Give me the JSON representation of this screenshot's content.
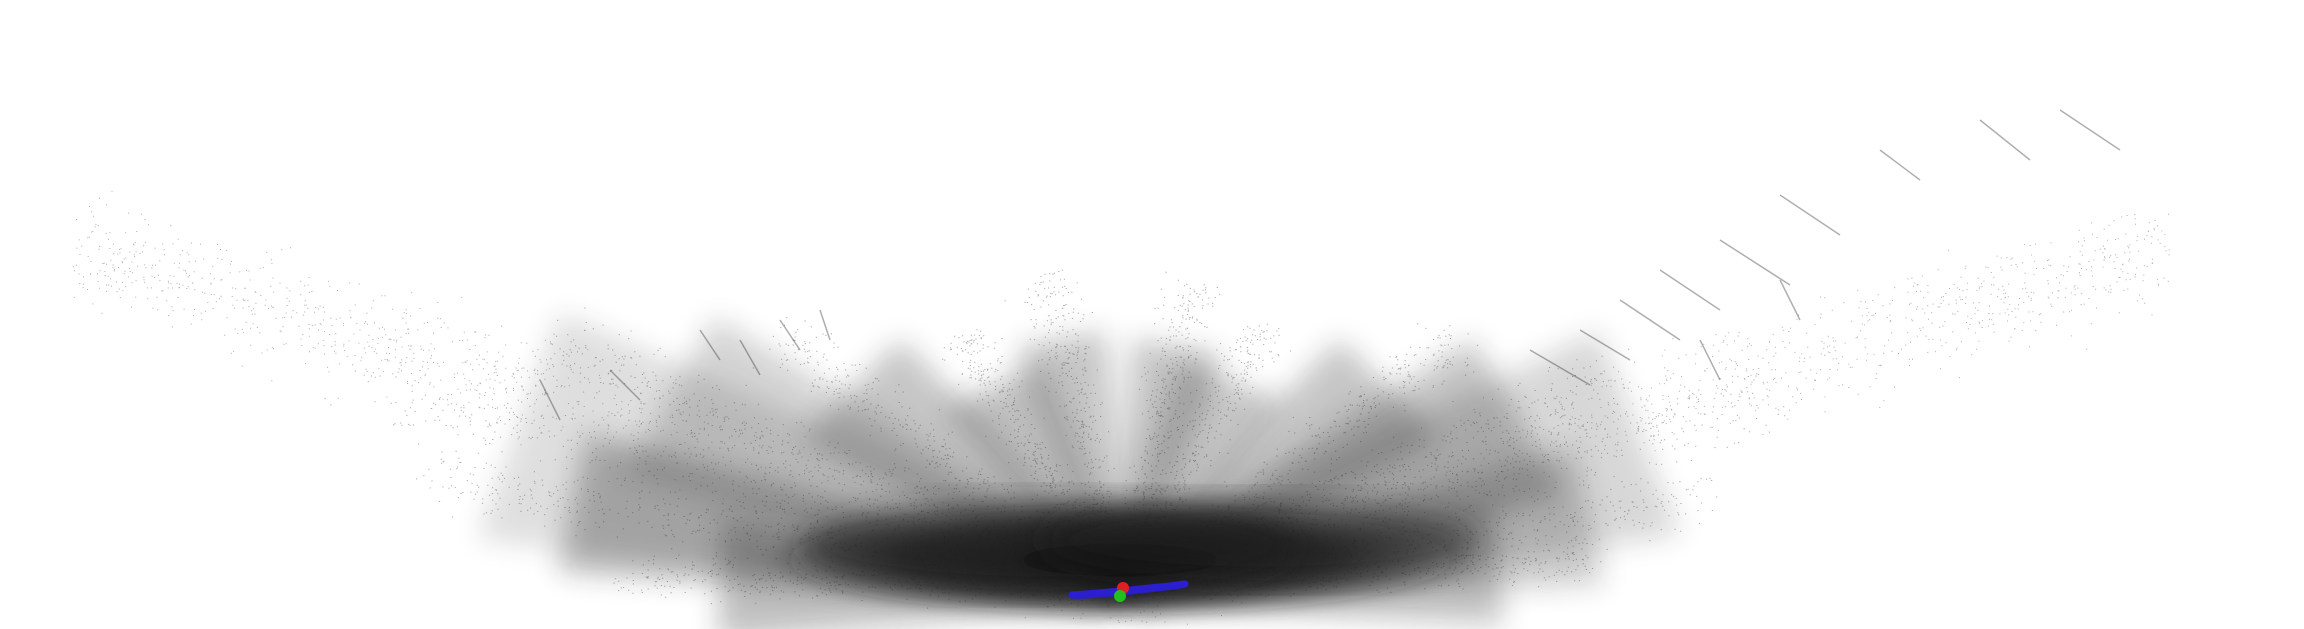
{
  "scene": {
    "type": "point-cloud-render",
    "background_color": "#ffffff",
    "point_color": "#1a1a1a",
    "trajectory_color": "#2b1fd0",
    "marker_colors": {
      "start": "#e02020",
      "end": "#20c020"
    }
  }
}
